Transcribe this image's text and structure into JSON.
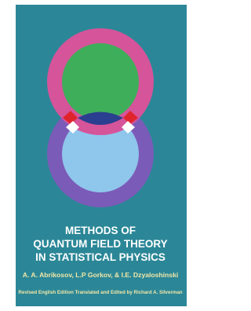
{
  "cover": {
    "title_lines": [
      "METHODS OF",
      "QUANTUM FIELD THEORY",
      "IN STATISTICAL PHYSICS"
    ],
    "authors": "A. A. Abrikosov, L.P Gorkov, & I.E. Dzyaloshinski",
    "credit": "Revised English Edition Translated and Edited by Richard A. Silverman"
  }
}
